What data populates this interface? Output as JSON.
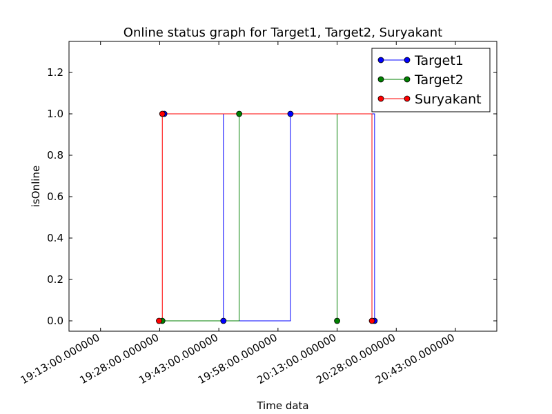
{
  "chart_data": {
    "type": "line",
    "title": "Online status graph for Target1, Target2, Suryakant",
    "xlabel": "Time data",
    "ylabel": "isOnline",
    "x_unit": "time of day",
    "xlim": [
      "19:05:00",
      "20:53:30"
    ],
    "ylim": [
      -0.05,
      1.35
    ],
    "xticks": [
      {
        "value": "19:13:00",
        "label": "19:13:00.000000"
      },
      {
        "value": "19:28:00",
        "label": "19:28:00.000000"
      },
      {
        "value": "19:43:00",
        "label": "19:43:00.000000"
      },
      {
        "value": "19:58:00",
        "label": "19:58:00.000000"
      },
      {
        "value": "20:13:00",
        "label": "20:13:00.000000"
      },
      {
        "value": "20:28:00",
        "label": "20:28:00.000000"
      },
      {
        "value": "20:43:00",
        "label": "20:43:00.000000"
      }
    ],
    "yticks": [
      {
        "value": 0.0,
        "label": "0.0"
      },
      {
        "value": 0.2,
        "label": "0.2"
      },
      {
        "value": 0.4,
        "label": "0.4"
      },
      {
        "value": 0.6,
        "label": "0.6"
      },
      {
        "value": 0.8,
        "label": "0.8"
      },
      {
        "value": 1.0,
        "label": "1.0"
      },
      {
        "value": 1.2,
        "label": "1.2"
      }
    ],
    "grid": false,
    "legend": "top-right",
    "drawstyle": "steps-post",
    "series": [
      {
        "name": "Target1",
        "color": "#0000ff",
        "points": [
          {
            "x": "19:29:10",
            "y": 1
          },
          {
            "x": "19:44:10",
            "y": 0
          },
          {
            "x": "20:01:10",
            "y": 1
          },
          {
            "x": "20:22:30",
            "y": 0
          }
        ]
      },
      {
        "name": "Target2",
        "color": "#008000",
        "points": [
          {
            "x": "19:28:40",
            "y": 0
          },
          {
            "x": "19:48:10",
            "y": 1
          },
          {
            "x": "20:13:00",
            "y": 0
          }
        ]
      },
      {
        "name": "Suryakant",
        "color": "#ff0000",
        "points": [
          {
            "x": "19:27:50",
            "y": 0
          },
          {
            "x": "19:28:40",
            "y": 1
          },
          {
            "x": "20:21:50",
            "y": 0
          }
        ]
      }
    ]
  }
}
